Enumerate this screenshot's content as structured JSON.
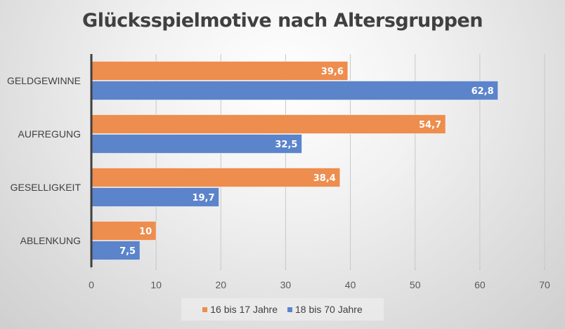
{
  "chart_data": {
    "type": "bar",
    "orientation": "horizontal",
    "title": "Glücksspielmotive nach Altersgruppen",
    "categories": [
      "GELDGEWINNE",
      "AUFREGUNG",
      "GESELLIGKEIT",
      "ABLENKUNG"
    ],
    "series": [
      {
        "name": "16 bis 17 Jahre",
        "color": "#ED8D4E",
        "values": [
          39.6,
          54.7,
          38.4,
          10
        ],
        "labels": [
          "39,6",
          "54,7",
          "38,4",
          "10"
        ]
      },
      {
        "name": "18 bis 70 Jahre",
        "color": "#5B84CB",
        "values": [
          62.8,
          32.5,
          19.7,
          7.5
        ],
        "labels": [
          "62,8",
          "32,5",
          "19,7",
          "7,5"
        ]
      }
    ],
    "xlabel": "",
    "ylabel": "",
    "xlim": [
      0,
      70
    ],
    "xticks": [
      0,
      10,
      20,
      30,
      40,
      50,
      60,
      70
    ],
    "xtick_labels": [
      "0",
      "10",
      "20",
      "30",
      "40",
      "50",
      "60",
      "70"
    ],
    "grid": "vertical",
    "legend_position": "bottom"
  }
}
